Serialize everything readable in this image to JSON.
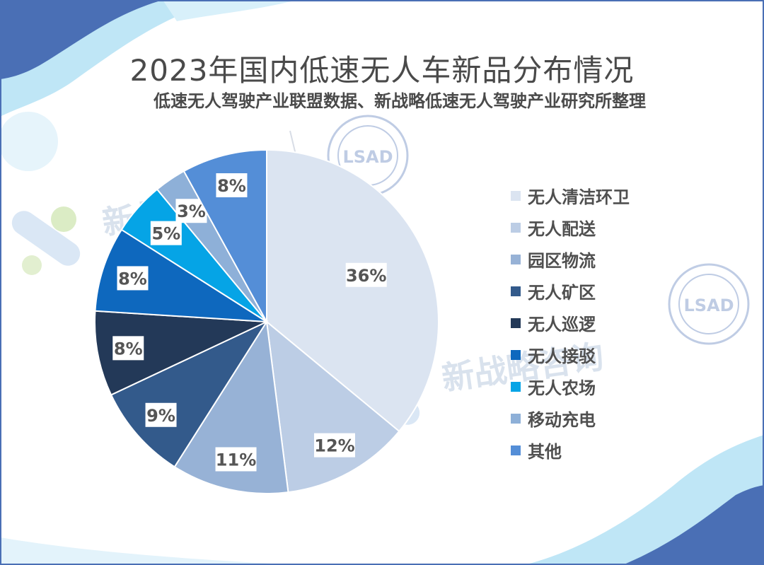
{
  "watermarks": [
    "新战略咨询",
    "新战略咨询"
  ],
  "chart_data": {
    "type": "pie",
    "title": "2023年国内低速无人车新品分布情况",
    "subtitle": "低速无人驾驶产业联盟数据、新战略低速无人驾驶产业研究所整理",
    "legend_position": "right",
    "slices": [
      {
        "name": "无人清洁环卫",
        "value": 36,
        "label": "36%",
        "color": "#dbe4f1"
      },
      {
        "name": "无人配送",
        "value": 12,
        "label": "12%",
        "color": "#bccde5"
      },
      {
        "name": "园区物流",
        "value": 11,
        "label": "11%",
        "color": "#97b2d6"
      },
      {
        "name": "无人矿区",
        "value": 9,
        "label": "9%",
        "color": "#335a8b"
      },
      {
        "name": "无人巡逻",
        "value": 8,
        "label": "8%",
        "color": "#233958"
      },
      {
        "name": "无人接驳",
        "value": 8,
        "label": "8%",
        "color": "#0e68be"
      },
      {
        "name": "无人农场",
        "value": 5,
        "label": "5%",
        "color": "#05a4e6"
      },
      {
        "name": "移动充电",
        "value": 3,
        "label": "3%",
        "color": "#8eb0d8"
      },
      {
        "name": "其他",
        "value": 8,
        "label": "8%",
        "color": "#548ed7"
      }
    ]
  }
}
